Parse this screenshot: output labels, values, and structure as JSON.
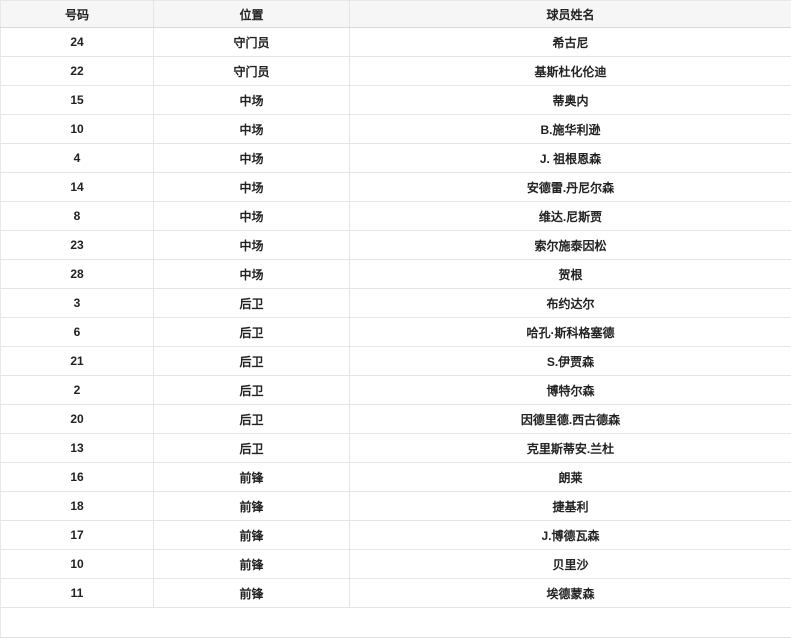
{
  "colors": {
    "header_bg": "#f6f6f7",
    "row_bg": "#ffffff",
    "border": "#e5e5e5",
    "text": "#222222"
  },
  "table": {
    "columns": [
      {
        "key": "number",
        "label": "号码"
      },
      {
        "key": "position",
        "label": "位置"
      },
      {
        "key": "name",
        "label": "球员姓名"
      }
    ],
    "rows": [
      {
        "number": "24",
        "position": "守门员",
        "name": "希古尼"
      },
      {
        "number": "22",
        "position": "守门员",
        "name": "基斯杜化伦迪"
      },
      {
        "number": "15",
        "position": "中场",
        "name": "蒂奥内"
      },
      {
        "number": "10",
        "position": "中场",
        "name": "B.施华利逊"
      },
      {
        "number": "4",
        "position": "中场",
        "name": "J. 祖根恩森"
      },
      {
        "number": "14",
        "position": "中场",
        "name": "安德雷.丹尼尔森"
      },
      {
        "number": "8",
        "position": "中场",
        "name": "维达.尼斯贾"
      },
      {
        "number": "23",
        "position": "中场",
        "name": "索尔施泰因松"
      },
      {
        "number": "28",
        "position": "中场",
        "name": "贺根"
      },
      {
        "number": "3",
        "position": "后卫",
        "name": "布约达尔"
      },
      {
        "number": "6",
        "position": "后卫",
        "name": "哈孔·斯科格塞德"
      },
      {
        "number": "21",
        "position": "后卫",
        "name": "S.伊贾森"
      },
      {
        "number": "2",
        "position": "后卫",
        "name": "博特尔森"
      },
      {
        "number": "20",
        "position": "后卫",
        "name": "因德里德.西古德森"
      },
      {
        "number": "13",
        "position": "后卫",
        "name": "克里斯蒂安.兰杜"
      },
      {
        "number": "16",
        "position": "前锋",
        "name": "朗莱"
      },
      {
        "number": "18",
        "position": "前锋",
        "name": "捷基利"
      },
      {
        "number": "17",
        "position": "前锋",
        "name": "J.博德瓦森"
      },
      {
        "number": "10",
        "position": "前锋",
        "name": "贝里沙"
      },
      {
        "number": "11",
        "position": "前锋",
        "name": "埃德蒙森"
      }
    ],
    "footer_text": ""
  }
}
